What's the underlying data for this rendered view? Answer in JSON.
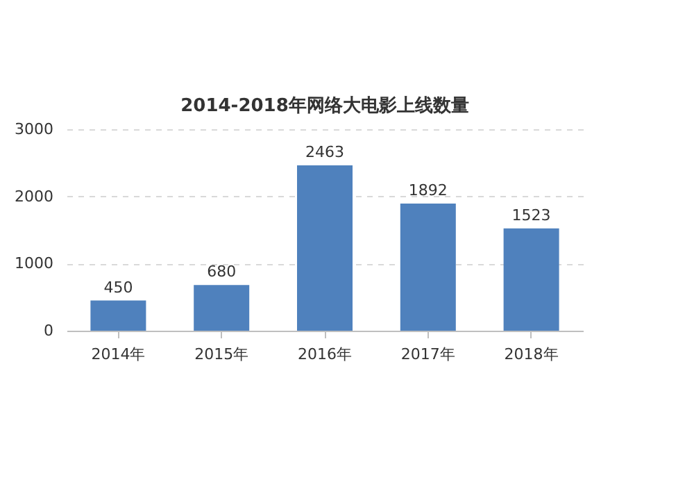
{
  "chart_data": {
    "type": "bar",
    "title": "2014-2018年网络大电影上线数量",
    "categories": [
      "2014年",
      "2015年",
      "2016年",
      "2017年",
      "2018年"
    ],
    "values": [
      450,
      680,
      2463,
      1892,
      1523
    ],
    "color": "#4f81bd",
    "ylim": [
      0,
      3000
    ],
    "yticks": [
      0,
      1000,
      2000,
      3000
    ],
    "grid": "y",
    "data_labels": true
  }
}
